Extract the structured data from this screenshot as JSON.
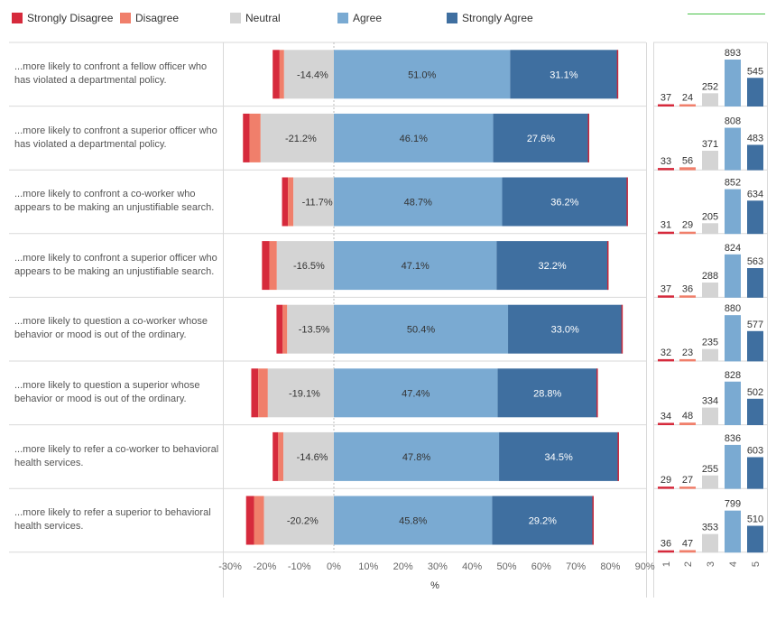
{
  "colors": {
    "strongly_disagree": "#d62a3c",
    "disagree": "#f07f6b",
    "neutral": "#d4d4d4",
    "agree": "#7aaad2",
    "strongly_agree": "#3f6fa0",
    "bar_outline": "#c8283a"
  },
  "legend": [
    {
      "key": "strongly_disagree",
      "label": "Strongly Disagree"
    },
    {
      "key": "disagree",
      "label": "Disagree"
    },
    {
      "key": "neutral",
      "label": "Neutral"
    },
    {
      "key": "agree",
      "label": "Agree"
    },
    {
      "key": "strongly_agree",
      "label": "Strongly Agree"
    }
  ],
  "chart_data": [
    {
      "type": "bar",
      "orientation": "horizontal-diverging",
      "xlabel": "%",
      "xlim": [
        -32,
        92
      ],
      "xticks": [
        "-30%",
        "-20%",
        "-10%",
        "0%",
        "10%",
        "20%",
        "30%",
        "40%",
        "50%",
        "60%",
        "70%",
        "80%",
        "90%"
      ],
      "categories": [
        "...more likely to confront a fellow officer who has violated a departmental policy.",
        "...more likely to confront a superior officer who has violated a departmental policy.",
        "...more likely to confront a co-worker who appears to be making an unjustifiable search.",
        "...more likely to confront a superior officer who appears to be making an unjustifiable search.",
        "...more likely to question a co-worker whose behavior or mood is out of the ordinary.",
        "...more likely to question a superior whose behavior or mood is out of the ordinary.",
        "...more likely to refer a co-worker to behavioral health services.",
        "...more likely to refer a superior  to behavioral health services."
      ],
      "series": [
        {
          "name": "Strongly Disagree",
          "values": [
            -2.0,
            -1.9,
            -1.7,
            -2.2,
            -1.8,
            -2.0,
            -1.6,
            -2.3
          ]
        },
        {
          "name": "Disagree",
          "values": [
            -1.3,
            -3.2,
            -1.6,
            -2.1,
            -1.3,
            -2.8,
            -1.5,
            -2.9
          ]
        },
        {
          "name": "Neutral",
          "values": [
            -14.4,
            -21.2,
            -11.7,
            -16.5,
            -13.5,
            -19.1,
            -14.6,
            -20.2
          ]
        },
        {
          "name": "Agree",
          "values": [
            51.0,
            46.1,
            48.7,
            47.1,
            50.4,
            47.4,
            47.8,
            45.8
          ]
        },
        {
          "name": "Strongly Agree",
          "values": [
            31.1,
            27.6,
            36.2,
            32.2,
            33.0,
            28.8,
            34.5,
            29.2
          ]
        }
      ],
      "data_labels": {
        "neutral": [
          "-14.4%",
          "-21.2%",
          "-11.7%",
          "-16.5%",
          "-13.5%",
          "-19.1%",
          "-14.6%",
          "-20.2%"
        ],
        "agree": [
          "51.0%",
          "46.1%",
          "48.7%",
          "47.1%",
          "50.4%",
          "47.4%",
          "47.8%",
          "45.8%"
        ],
        "strongly_agree": [
          "31.1%",
          "27.6%",
          "36.2%",
          "32.2%",
          "33.0%",
          "28.8%",
          "34.5%",
          "29.2%"
        ]
      }
    },
    {
      "type": "bar",
      "orientation": "vertical-small-multiples",
      "categories": [
        "1",
        "2",
        "3",
        "4",
        "5"
      ],
      "ylim": [
        0,
        893
      ],
      "rows": [
        [
          37,
          24,
          252,
          893,
          545
        ],
        [
          33,
          56,
          371,
          808,
          483
        ],
        [
          31,
          29,
          205,
          852,
          634
        ],
        [
          37,
          36,
          288,
          824,
          563
        ],
        [
          32,
          23,
          235,
          880,
          577
        ],
        [
          34,
          48,
          334,
          828,
          502
        ],
        [
          29,
          27,
          255,
          836,
          603
        ],
        [
          36,
          47,
          353,
          799,
          510
        ]
      ]
    }
  ]
}
